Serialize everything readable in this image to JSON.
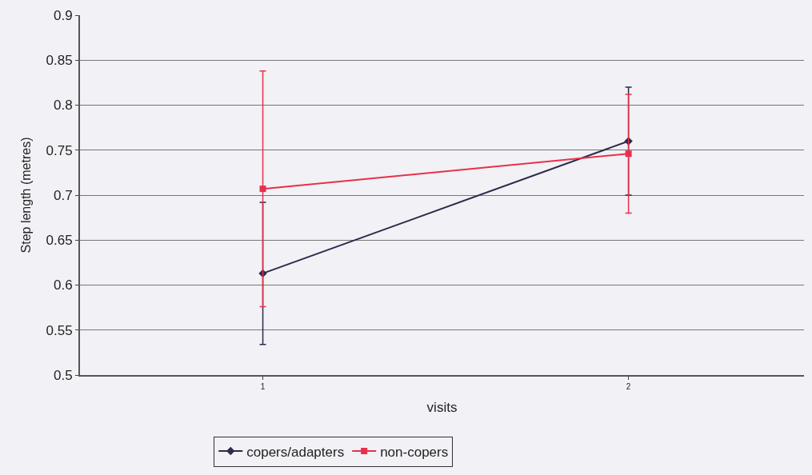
{
  "chart_data": {
    "type": "line",
    "xlabel": "visits",
    "ylabel": "Step length (metres)",
    "x": [
      1,
      2
    ],
    "xlim": [
      0.5,
      2.48
    ],
    "xticks": [
      1,
      2
    ],
    "ylim": [
      0.5,
      0.9
    ],
    "yticks": [
      0.5,
      0.55,
      0.6,
      0.65,
      0.7,
      0.75,
      0.8,
      0.85,
      0.9
    ],
    "series": [
      {
        "name": "copers/adapters",
        "color": "#2b2b4a",
        "values": [
          0.613,
          0.76
        ],
        "errors": [
          0.079,
          0.06
        ],
        "marker": "diamond"
      },
      {
        "name": "non-copers",
        "color": "#e8304a",
        "values": [
          0.707,
          0.746
        ],
        "errors": [
          0.131,
          0.066
        ],
        "marker": "square"
      }
    ],
    "grid": "y",
    "legend": "bottom",
    "line_style": "solid"
  }
}
